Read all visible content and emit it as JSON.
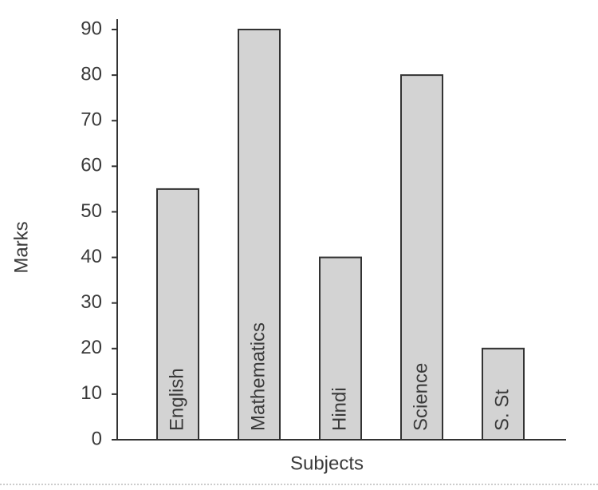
{
  "chart_data": {
    "type": "bar",
    "categories": [
      "English",
      "Mathematics",
      "Hindi",
      "Science",
      "S. St"
    ],
    "values": [
      55,
      90,
      40,
      80,
      20
    ],
    "color": "#d3d3d3",
    "x_label": "Subjects",
    "y_label": "Marks",
    "ylim": [
      0,
      90
    ],
    "yticks": [
      0,
      10,
      20,
      30,
      40,
      50,
      60,
      70,
      80,
      90
    ]
  }
}
